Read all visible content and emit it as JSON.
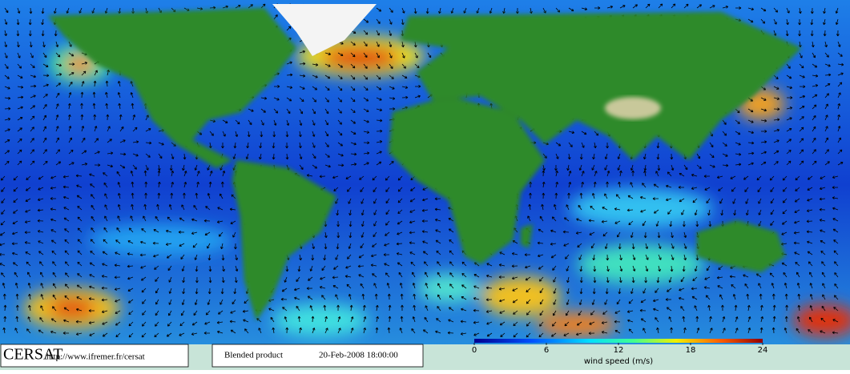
{
  "footer": {
    "logo": "CERSAT",
    "url": "http://www.ifremer.fr/cersat",
    "product": "Blended product",
    "datetime": "20-Feb-2008 18:00:00"
  },
  "colorbar": {
    "label": "wind speed (m/s)",
    "range": [
      0,
      24
    ],
    "ticks": [
      0,
      6,
      12,
      18,
      24
    ]
  }
}
